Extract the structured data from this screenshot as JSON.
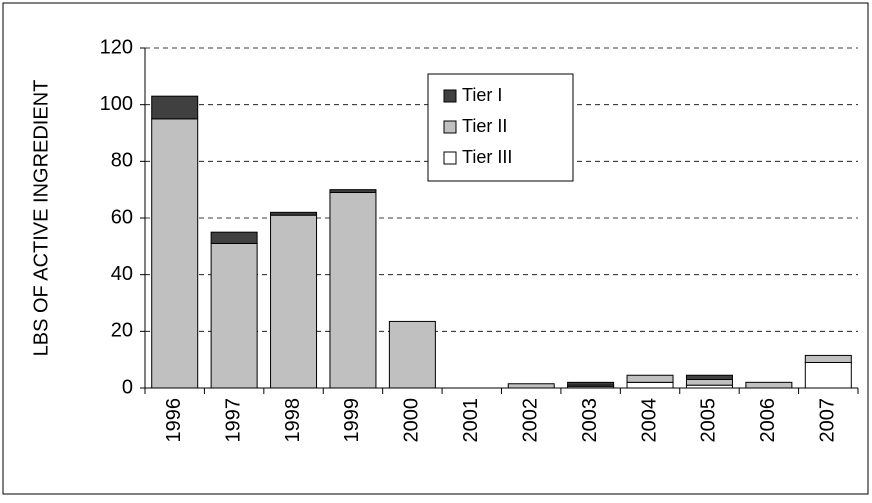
{
  "chart_data": {
    "type": "stacked_bar",
    "ylabel": "LBS OF ACTIVE INGREDIENT",
    "categories": [
      "1996",
      "1997",
      "1998",
      "1999",
      "2000",
      "2001",
      "2002",
      "2003",
      "2004",
      "2005",
      "2006",
      "2007"
    ],
    "series": [
      {
        "name": "Tier III",
        "color": "#ffffff",
        "values": [
          0,
          0,
          0,
          0,
          0,
          0,
          0,
          0.5,
          2,
          1,
          0,
          9
        ]
      },
      {
        "name": "Tier II",
        "color": "#c0c0c0",
        "values": [
          95,
          51,
          61,
          69,
          23.5,
          0,
          1.5,
          0.5,
          2.5,
          2,
          2,
          2.5
        ]
      },
      {
        "name": "Tier I",
        "color": "#404040",
        "values": [
          8,
          4,
          1,
          1,
          0,
          0,
          0,
          1,
          0,
          1.5,
          0,
          0
        ]
      }
    ],
    "ylim": [
      0,
      120
    ],
    "yticks": [
      0,
      20,
      40,
      60,
      80,
      100,
      120
    ],
    "grid": true
  }
}
